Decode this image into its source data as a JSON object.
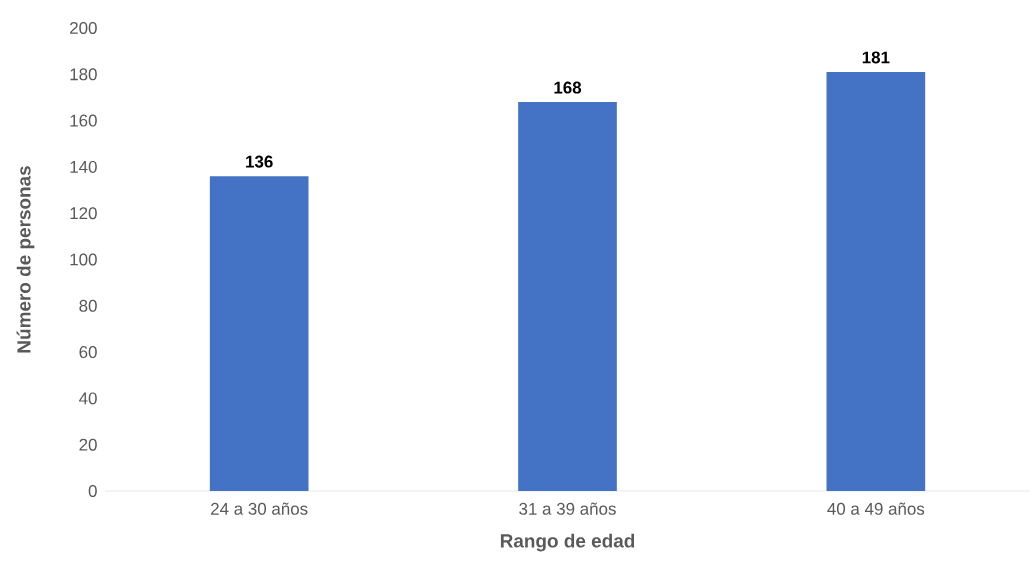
{
  "chart_data": {
    "type": "bar",
    "xlabel": "Rango de edad",
    "ylabel": "Número de personas",
    "categories": [
      "24 a 30 años",
      "31 a 39 años",
      "40 a 49 años"
    ],
    "values": [
      136,
      168,
      181
    ],
    "color": "#4472c4",
    "ylim": [
      0,
      200
    ],
    "yticks": [
      0,
      20,
      40,
      60,
      80,
      100,
      120,
      140,
      160,
      180,
      200
    ],
    "data_labels": true
  }
}
